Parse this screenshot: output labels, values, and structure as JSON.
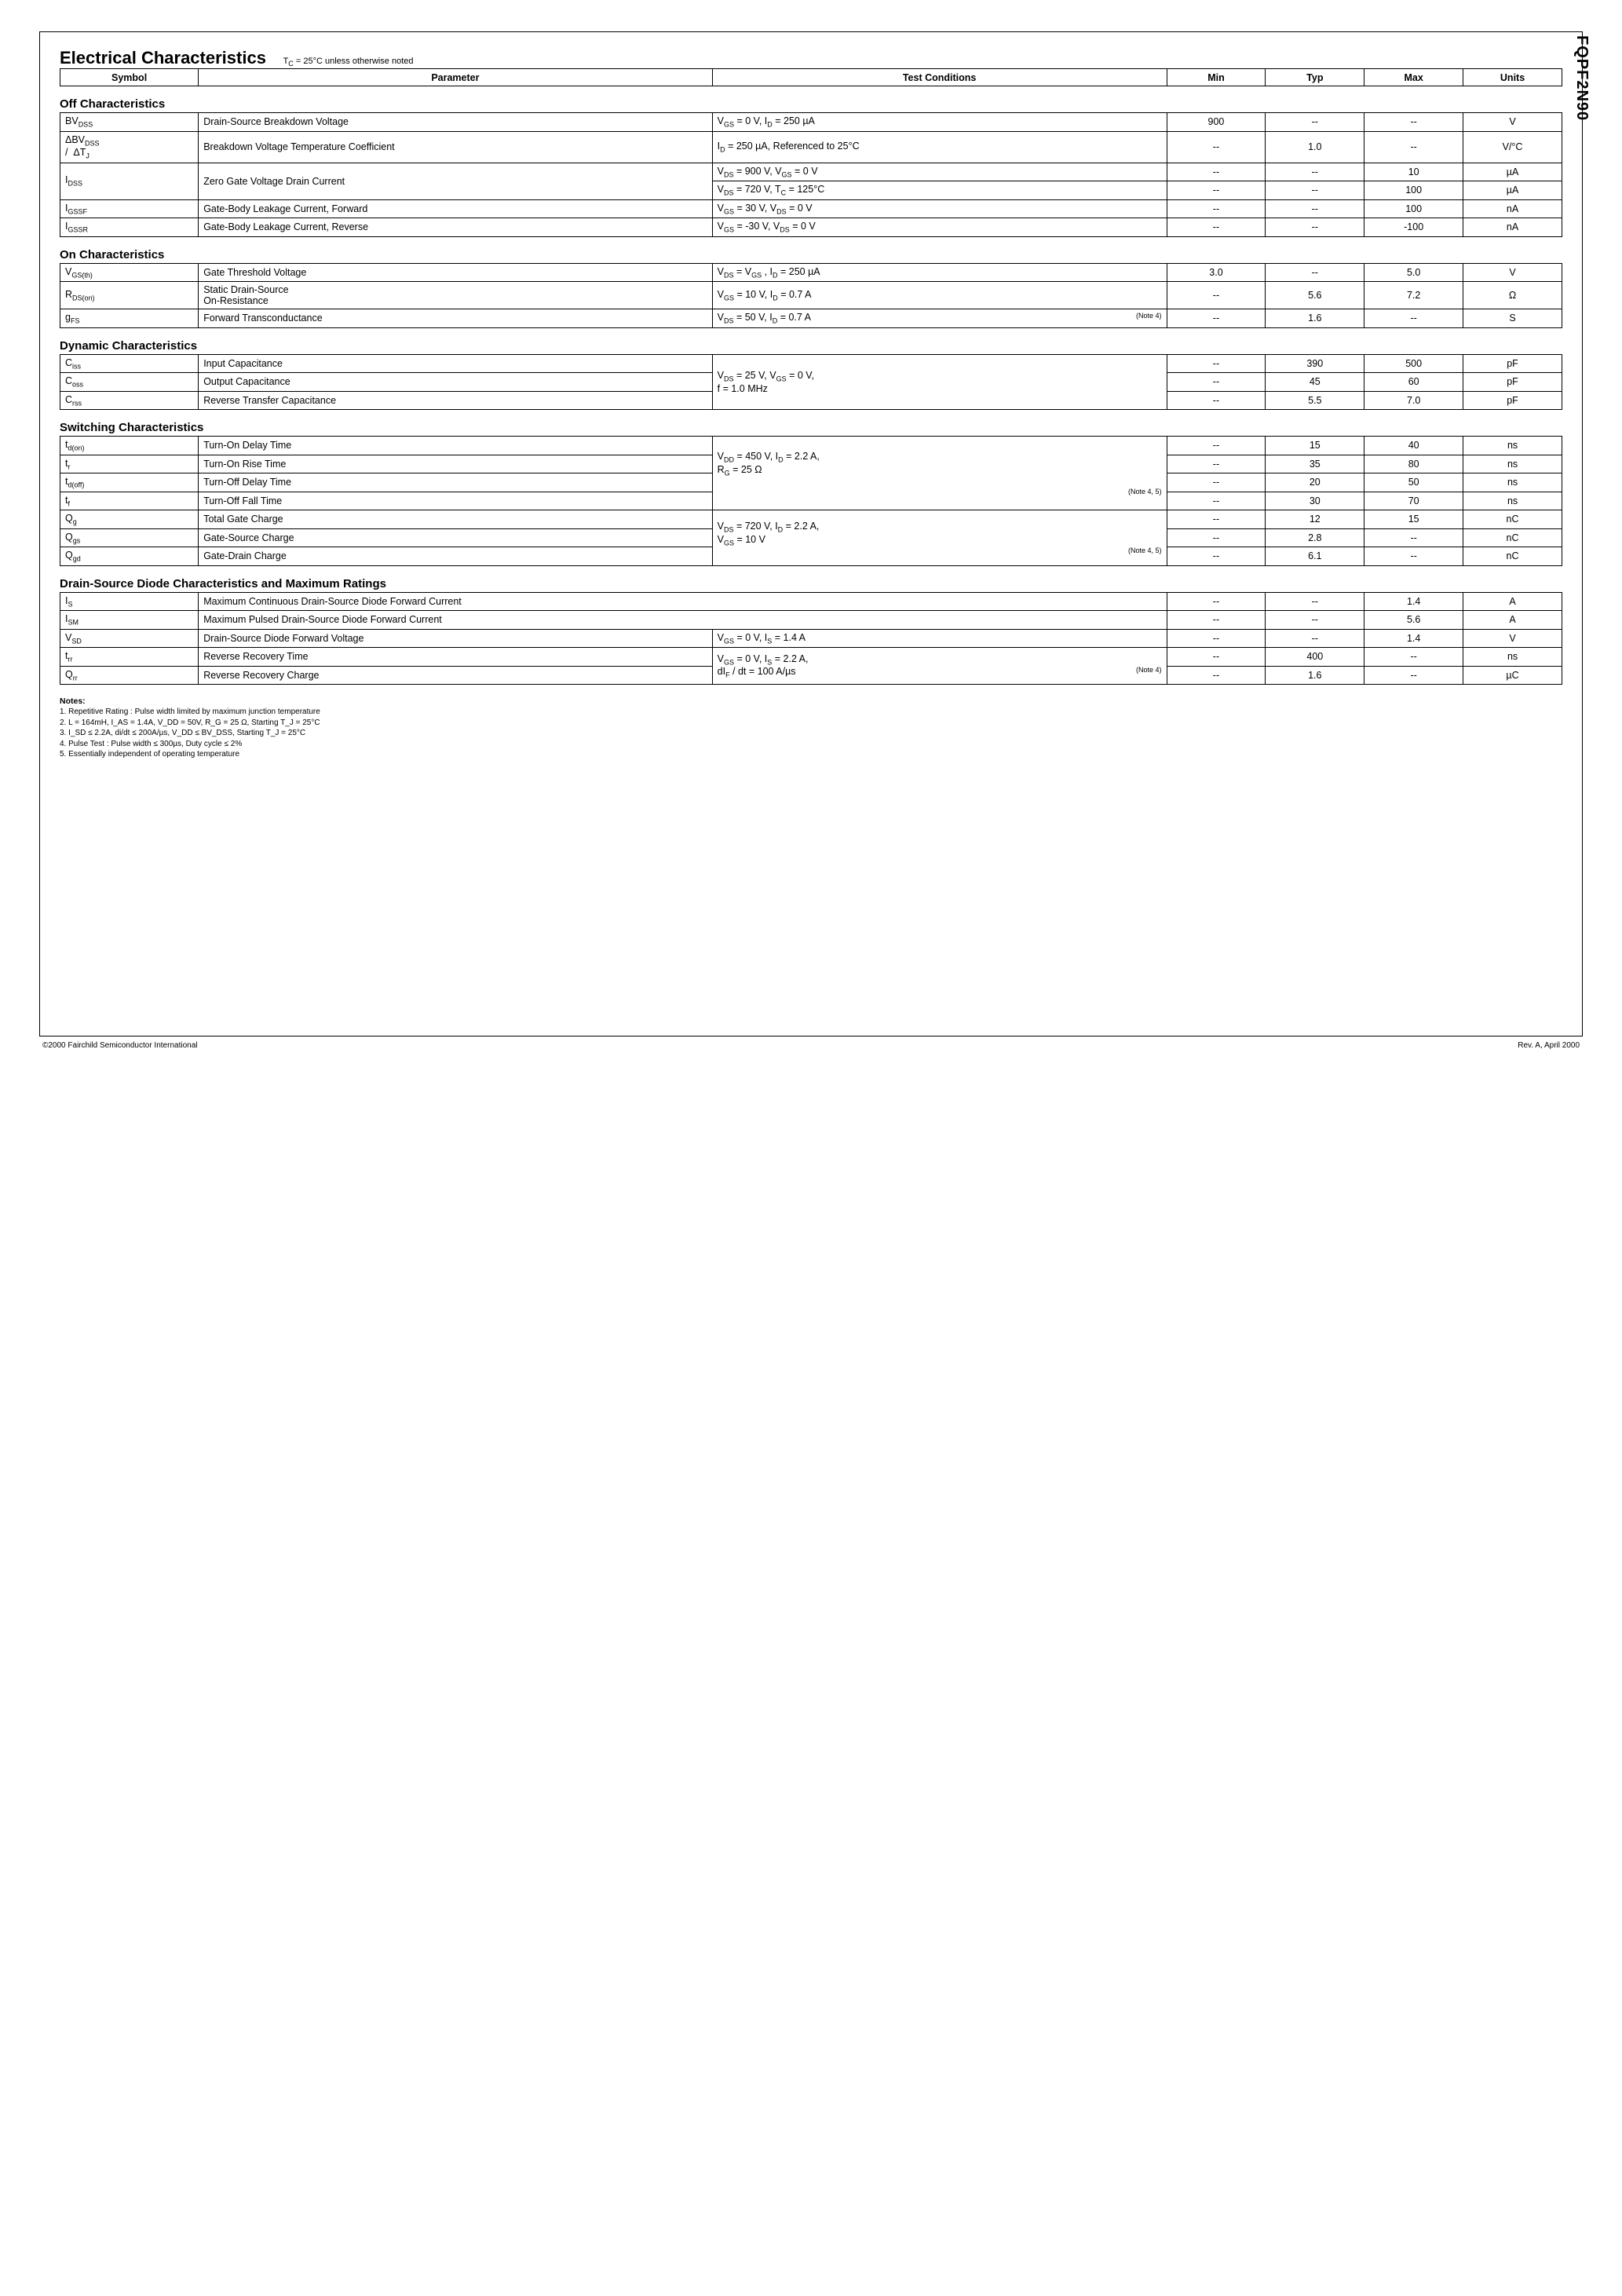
{
  "part_number": "FQPF2N90",
  "title": "Electrical Characteristics",
  "title_condition": "T_C = 25°C unless otherwise noted",
  "header": {
    "symbol": "Symbol",
    "parameter": "Parameter",
    "conditions": "Test Conditions",
    "min": "Min",
    "typ": "Typ",
    "max": "Max",
    "units": "Units"
  },
  "sections": {
    "off": {
      "title": "Off Characteristics",
      "rows": [
        {
          "sym": "BV_DSS",
          "param": "Drain-Source Breakdown Voltage",
          "cond": "V_GS = 0 V, I_D = 250 µA",
          "min": "900",
          "typ": "--",
          "max": "--",
          "units": "V"
        },
        {
          "sym": "ΔBV_DSS / ΔT_J",
          "param": "Breakdown Voltage Temperature Coefficient",
          "cond": "I_D = 250 µA, Referenced to 25°C",
          "min": "--",
          "typ": "1.0",
          "max": "--",
          "units": "V/°C"
        },
        {
          "sym": "I_DSS",
          "param": "Zero Gate Voltage Drain Current",
          "cond": "V_DS = 900 V, V_GS = 0 V",
          "min": "--",
          "typ": "--",
          "max": "10",
          "units": "µA",
          "rowspan_sym": 2,
          "rowspan_param": 2
        },
        {
          "cond": "V_DS = 720 V, T_C = 125°C",
          "min": "--",
          "typ": "--",
          "max": "100",
          "units": "µA"
        },
        {
          "sym": "I_GSSF",
          "param": "Gate-Body Leakage Current, Forward",
          "cond": "V_GS = 30 V, V_DS = 0 V",
          "min": "--",
          "typ": "--",
          "max": "100",
          "units": "nA"
        },
        {
          "sym": "I_GSSR",
          "param": "Gate-Body Leakage Current, Reverse",
          "cond": "V_GS = -30 V, V_DS = 0 V",
          "min": "--",
          "typ": "--",
          "max": "-100",
          "units": "nA"
        }
      ]
    },
    "on": {
      "title": "On Characteristics",
      "rows": [
        {
          "sym": "V_GS(th)",
          "param": "Gate Threshold Voltage",
          "cond": "V_DS = V_GS , I_D = 250 µA",
          "min": "3.0",
          "typ": "--",
          "max": "5.0",
          "units": "V"
        },
        {
          "sym": "R_DS(on)",
          "param": "Static Drain-Source On-Resistance",
          "cond": "V_GS = 10 V, I_D = 0.7 A",
          "min": "--",
          "typ": "5.6",
          "max": "7.2",
          "units": "Ω"
        },
        {
          "sym": "g_FS",
          "param": "Forward Transconductance",
          "cond": "V_DS = 50 V, I_D = 0.7 A",
          "note": "(Note 4)",
          "min": "--",
          "typ": "1.6",
          "max": "--",
          "units": "S"
        }
      ]
    },
    "dynamic": {
      "title": "Dynamic Characteristics",
      "cond_shared": "V_DS = 25 V, V_GS = 0 V, f = 1.0 MHz",
      "rows": [
        {
          "sym": "C_iss",
          "param": "Input Capacitance",
          "min": "--",
          "typ": "390",
          "max": "500",
          "units": "pF"
        },
        {
          "sym": "C_oss",
          "param": "Output Capacitance",
          "min": "--",
          "typ": "45",
          "max": "60",
          "units": "pF"
        },
        {
          "sym": "C_rss",
          "param": "Reverse Transfer Capacitance",
          "min": "--",
          "typ": "5.5",
          "max": "7.0",
          "units": "pF"
        }
      ]
    },
    "switching": {
      "title": "Switching Characteristics",
      "cond1": "V_DD = 450 V, I_D = 2.2 A, R_G = 25 Ω",
      "note1": "(Note 4, 5)",
      "cond2": "V_DS = 720 V, I_D = 2.2 A, V_GS = 10 V",
      "note2": "(Note 4, 5)",
      "rows": [
        {
          "sym": "t_d(on)",
          "param": "Turn-On Delay Time",
          "min": "--",
          "typ": "15",
          "max": "40",
          "units": "ns"
        },
        {
          "sym": "t_r",
          "param": "Turn-On Rise Time",
          "min": "--",
          "typ": "35",
          "max": "80",
          "units": "ns"
        },
        {
          "sym": "t_d(off)",
          "param": "Turn-Off Delay Time",
          "min": "--",
          "typ": "20",
          "max": "50",
          "units": "ns"
        },
        {
          "sym": "t_f",
          "param": "Turn-Off Fall Time",
          "min": "--",
          "typ": "30",
          "max": "70",
          "units": "ns"
        },
        {
          "sym": "Q_g",
          "param": "Total Gate Charge",
          "min": "--",
          "typ": "12",
          "max": "15",
          "units": "nC"
        },
        {
          "sym": "Q_gs",
          "param": "Gate-Source Charge",
          "min": "--",
          "typ": "2.8",
          "max": "--",
          "units": "nC"
        },
        {
          "sym": "Q_gd",
          "param": "Gate-Drain Charge",
          "min": "--",
          "typ": "6.1",
          "max": "--",
          "units": "nC"
        }
      ]
    },
    "diode": {
      "title": "Drain-Source Diode Characteristics and Maximum Ratings",
      "rows": [
        {
          "sym": "I_S",
          "param": "Maximum Continuous Drain-Source Diode Forward Current",
          "cond": "",
          "colspan_param": 2,
          "min": "--",
          "typ": "--",
          "max": "1.4",
          "units": "A"
        },
        {
          "sym": "I_SM",
          "param": "Maximum Pulsed Drain-Source Diode Forward Current",
          "cond": "",
          "colspan_param": 2,
          "min": "--",
          "typ": "--",
          "max": "5.6",
          "units": "A"
        },
        {
          "sym": "V_SD",
          "param": "Drain-Source Diode Forward Voltage",
          "cond": "V_GS = 0 V, I_S = 1.4 A",
          "min": "--",
          "typ": "--",
          "max": "1.4",
          "units": "V"
        },
        {
          "sym": "t_rr",
          "param": "Reverse Recovery Time",
          "cond": "V_GS = 0 V, I_S = 2.2 A,",
          "min": "--",
          "typ": "400",
          "max": "--",
          "units": "ns",
          "rowspan_cond": 2
        },
        {
          "sym": "Q_rr",
          "param": "Reverse Recovery Charge",
          "cond": "dI_F / dt = 100 A/µs",
          "note": "(Note 4)",
          "min": "--",
          "typ": "1.6",
          "max": "--",
          "units": "µC"
        }
      ]
    }
  },
  "notes": {
    "head": "Notes:",
    "items": [
      "1. Repetitive Rating : Pulse width limited by maximum junction temperature",
      "2. L = 164mH, I_AS = 1.4A, V_DD = 50V, R_G = 25 Ω, Starting T_J = 25°C",
      "3. I_SD ≤ 2.2A, di/dt ≤ 200A/µs, V_DD ≤ BV_DSS, Starting T_J = 25°C",
      "4. Pulse Test : Pulse width ≤ 300µs, Duty cycle ≤ 2%",
      "5. Essentially independent of operating temperature"
    ]
  },
  "footer": {
    "left": "©2000 Fairchild Semiconductor International",
    "right": "Rev. A, April 2000"
  }
}
